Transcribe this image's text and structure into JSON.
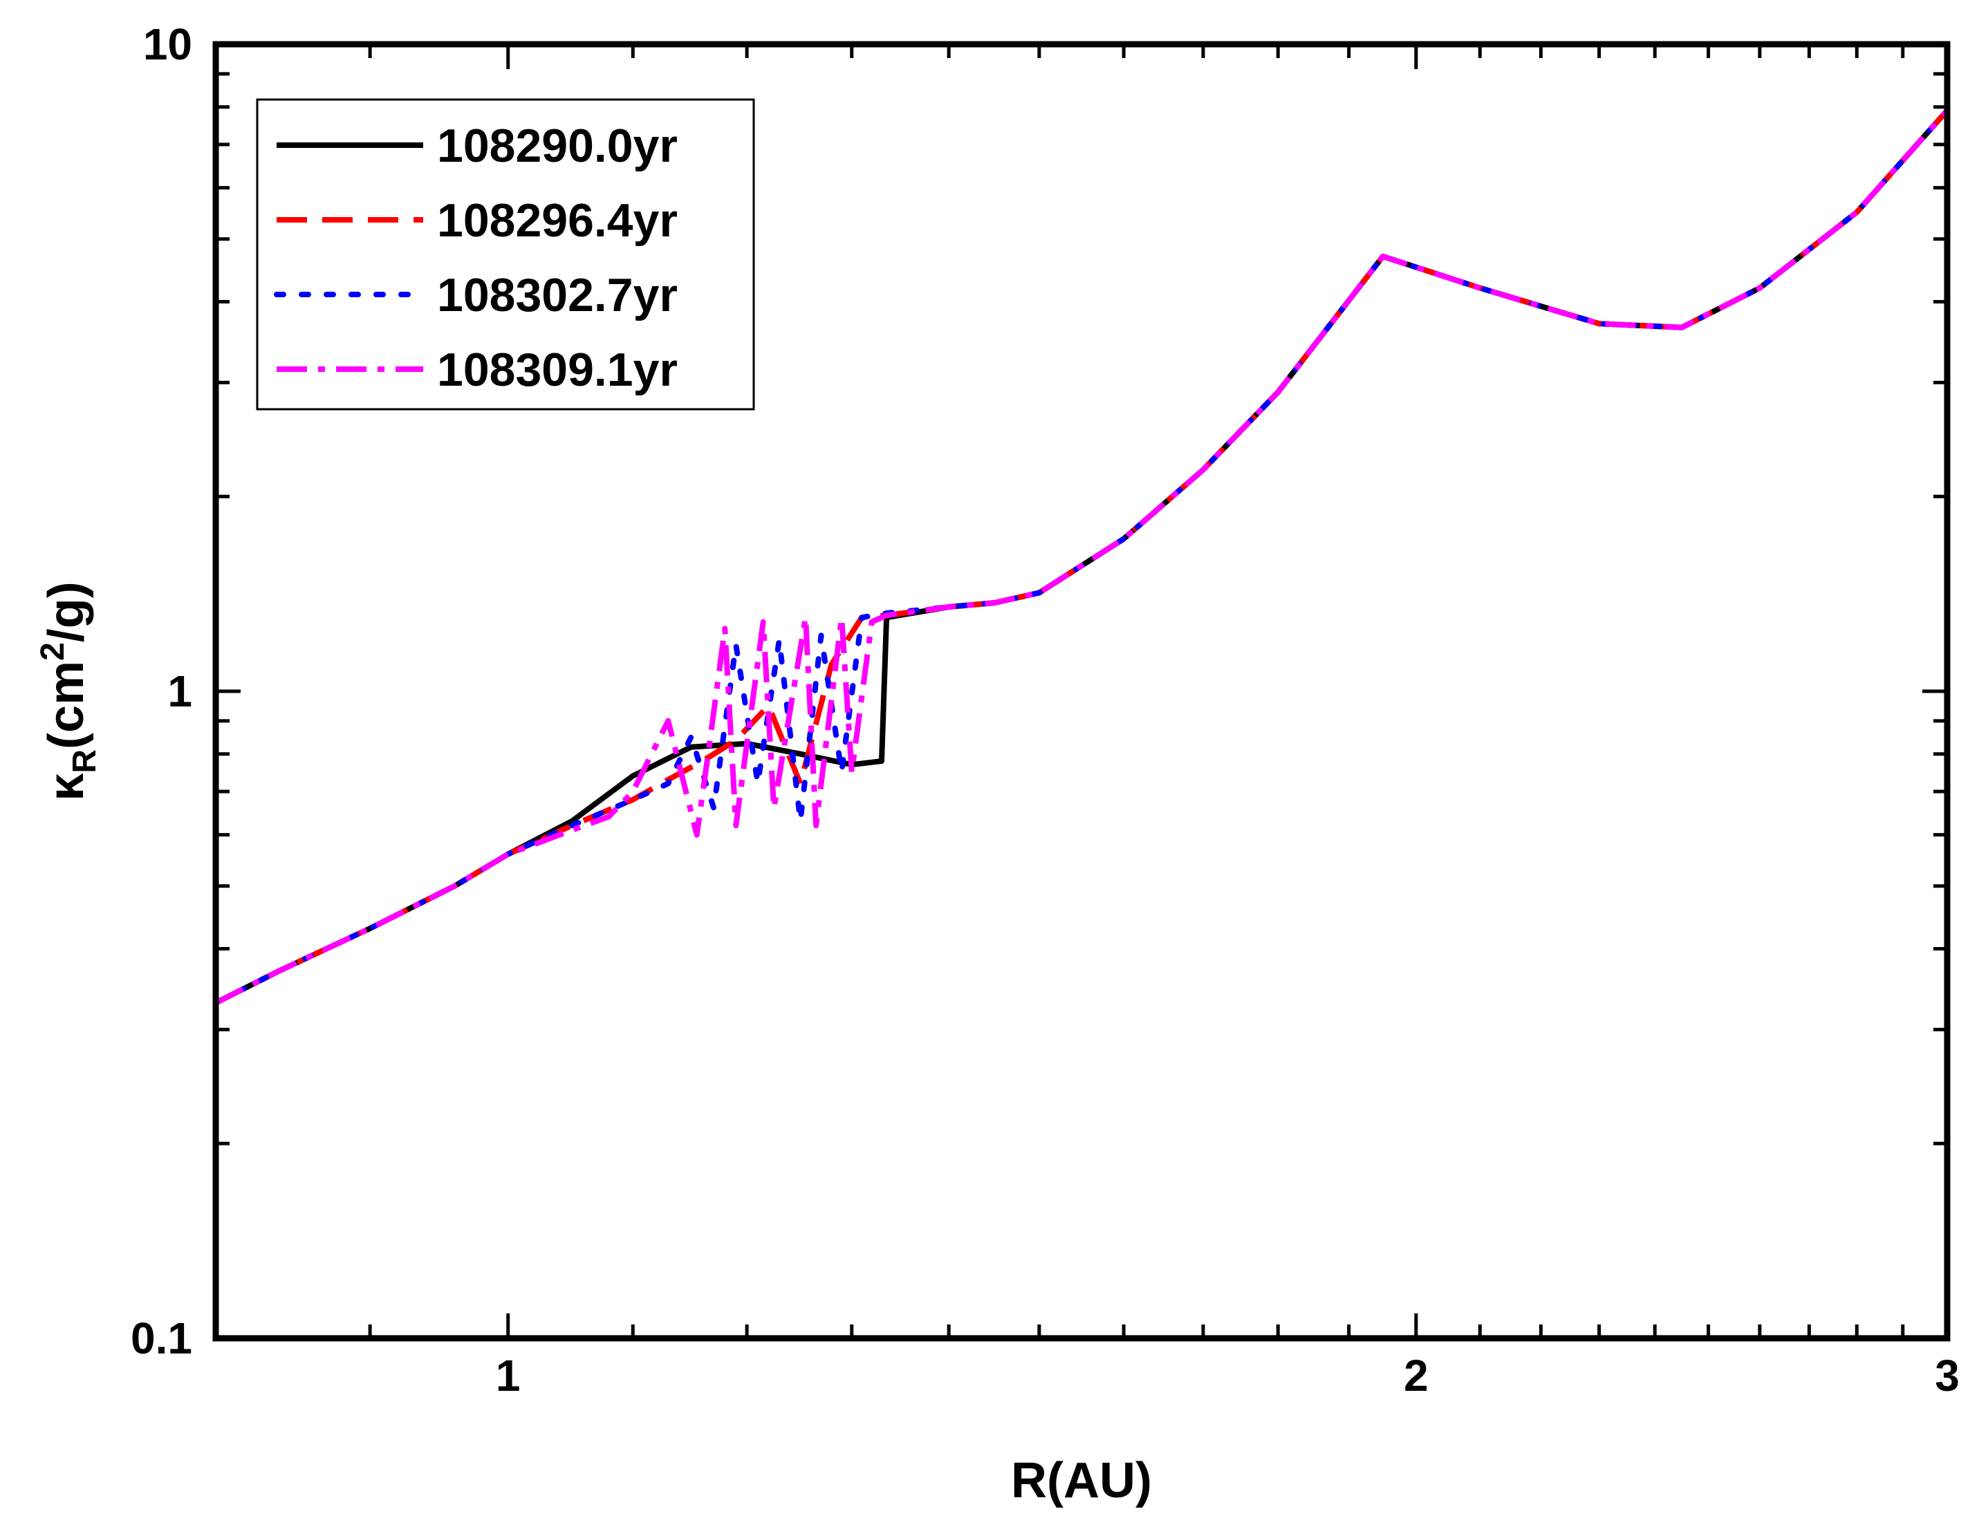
{
  "chart_data": {
    "type": "line",
    "title": "",
    "xlabel": "R(AU)",
    "ylabel": {
      "symbol": "κ",
      "sub": "R",
      "pre": "(cm",
      "sup": "2",
      "post": "/g)"
    },
    "xlim": [
      0.8,
      3.0
    ],
    "ylim": [
      0.1,
      10
    ],
    "xscale": "log",
    "yscale": "log",
    "x_ticks": [
      1,
      2,
      3
    ],
    "x_tick_labels": [
      "1",
      "2",
      "3"
    ],
    "y_ticks": [
      0.1,
      1,
      10
    ],
    "y_tick_labels": [
      "0.1",
      "1",
      "10"
    ],
    "grid": false,
    "legend_position": "top-left",
    "series": [
      {
        "name": "108290.0yr",
        "color": "#000000",
        "style": "solid",
        "x": [
          0.8,
          0.84,
          0.9,
          0.96,
          1.0,
          1.05,
          1.1,
          1.15,
          1.2,
          1.25,
          1.3,
          1.33,
          1.335,
          1.4,
          1.45,
          1.5,
          1.6,
          1.7,
          1.8,
          1.95,
          2.1,
          2.3,
          2.45,
          2.6,
          2.8,
          3.0
        ],
        "y": [
          0.33,
          0.37,
          0.43,
          0.5,
          0.56,
          0.63,
          0.74,
          0.82,
          0.83,
          0.8,
          0.77,
          0.78,
          1.3,
          1.35,
          1.37,
          1.42,
          1.72,
          2.2,
          2.9,
          4.7,
          4.2,
          3.7,
          3.65,
          4.2,
          5.5,
          7.9
        ]
      },
      {
        "name": "108296.4yr",
        "color": "#ff0000",
        "style": "dashed",
        "x": [
          0.8,
          0.84,
          0.9,
          0.96,
          1.0,
          1.05,
          1.1,
          1.13,
          1.16,
          1.19,
          1.22,
          1.25,
          1.28,
          1.31,
          1.335,
          1.4,
          1.45,
          1.5,
          1.6,
          1.7,
          1.8,
          1.95,
          2.1,
          2.3,
          2.45,
          2.6,
          2.8,
          3.0
        ],
        "y": [
          0.33,
          0.37,
          0.43,
          0.5,
          0.56,
          0.62,
          0.68,
          0.73,
          0.78,
          0.84,
          0.95,
          0.72,
          1.1,
          1.3,
          1.31,
          1.35,
          1.37,
          1.42,
          1.72,
          2.2,
          2.9,
          4.7,
          4.2,
          3.7,
          3.65,
          4.2,
          5.5,
          7.9
        ]
      },
      {
        "name": "108302.7yr",
        "color": "#0000ff",
        "style": "dotted",
        "x": [
          0.8,
          0.84,
          0.9,
          0.96,
          1.0,
          1.05,
          1.1,
          1.13,
          1.15,
          1.17,
          1.19,
          1.21,
          1.23,
          1.25,
          1.27,
          1.29,
          1.31,
          1.335,
          1.4,
          1.45,
          1.5,
          1.6,
          1.7,
          1.8,
          1.95,
          2.1,
          2.3,
          2.45,
          2.6,
          2.8,
          3.0
        ],
        "y": [
          0.33,
          0.37,
          0.43,
          0.5,
          0.56,
          0.62,
          0.68,
          0.72,
          0.85,
          0.66,
          1.18,
          0.72,
          1.2,
          0.63,
          1.22,
          0.75,
          1.3,
          1.32,
          1.35,
          1.37,
          1.42,
          1.72,
          2.2,
          2.9,
          4.7,
          4.2,
          3.7,
          3.65,
          4.2,
          5.5,
          7.9
        ]
      },
      {
        "name": "108309.1yr",
        "color": "#ff00ff",
        "style": "dashdot",
        "x": [
          0.8,
          0.84,
          0.9,
          0.96,
          1.0,
          1.05,
          1.08,
          1.1,
          1.13,
          1.155,
          1.165,
          1.18,
          1.19,
          1.215,
          1.225,
          1.255,
          1.265,
          1.29,
          1.3,
          1.32,
          1.335,
          1.4,
          1.45,
          1.5,
          1.6,
          1.7,
          1.8,
          1.95,
          2.1,
          2.3,
          2.45,
          2.6,
          2.8,
          3.0
        ],
        "y": [
          0.33,
          0.37,
          0.43,
          0.5,
          0.56,
          0.61,
          0.64,
          0.7,
          0.9,
          0.6,
          0.8,
          1.25,
          0.62,
          1.28,
          0.66,
          1.3,
          0.62,
          1.3,
          0.75,
          1.28,
          1.31,
          1.35,
          1.37,
          1.42,
          1.72,
          2.2,
          2.9,
          4.7,
          4.2,
          3.7,
          3.65,
          4.2,
          5.5,
          7.9
        ]
      }
    ]
  }
}
